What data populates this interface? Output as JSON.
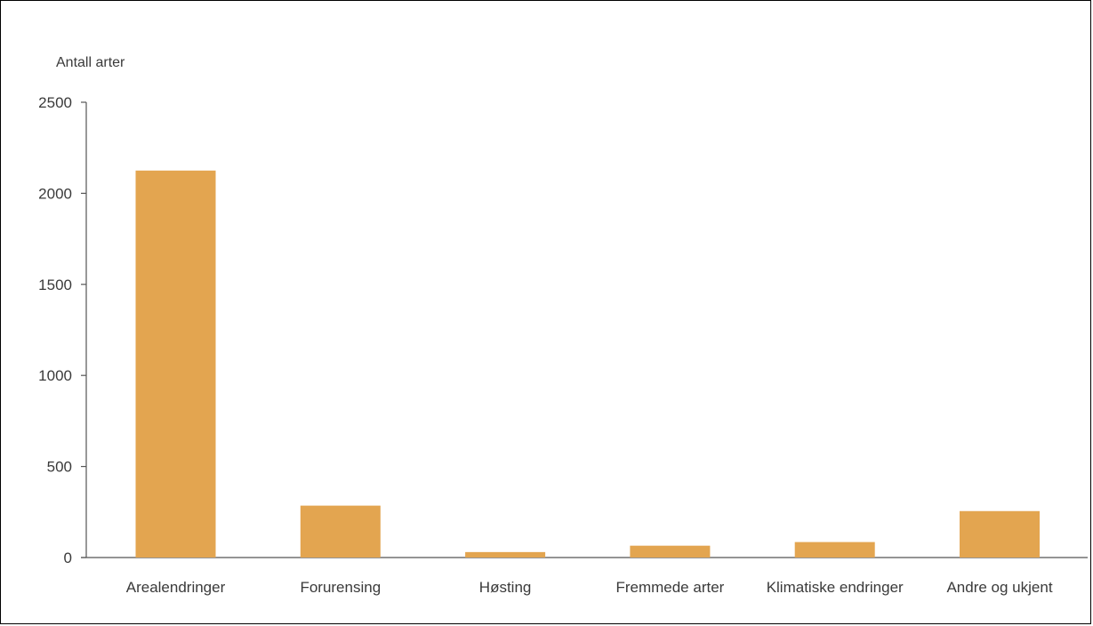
{
  "chart_data": {
    "type": "bar",
    "title": "",
    "xlabel": "",
    "ylabel": "Antall arter",
    "ylim": [
      0,
      2500
    ],
    "yticks": [
      0,
      500,
      1000,
      1500,
      2000,
      2500
    ],
    "categories": [
      "Arealendringer",
      "Forurensing",
      "Høsting",
      "Fremmede arter",
      "Klimatiske endringer",
      "Andre og ukjent"
    ],
    "values": [
      2125,
      285,
      30,
      65,
      85,
      255
    ],
    "bar_color": "#E3A550",
    "grid": false,
    "legend": "none"
  }
}
